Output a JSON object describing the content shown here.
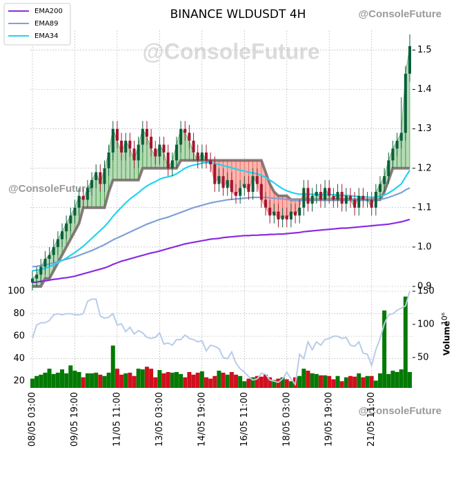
{
  "chart_data": {
    "type": "candlestick",
    "title": "BINANCE WLDUSDT 4H",
    "watermarks": [
      "@ConsoleFuture",
      "@ConsoleFuture",
      "@ConsoleFuture",
      "@ConsoleFuture"
    ],
    "categories": [
      "08/05 03:00",
      null,
      null,
      null,
      null,
      null,
      null,
      null,
      null,
      null,
      "09/05 19:00",
      null,
      null,
      null,
      null,
      null,
      null,
      null,
      null,
      null,
      "11/05 11:00",
      null,
      null,
      null,
      null,
      null,
      null,
      null,
      null,
      null,
      "13/05 03:00",
      null,
      null,
      null,
      null,
      null,
      null,
      null,
      null,
      null,
      "14/05 19:00",
      null,
      null,
      null,
      null,
      null,
      null,
      null,
      null,
      null,
      "16/05 11:00",
      null,
      null,
      null,
      null,
      null,
      null,
      null,
      null,
      null,
      "18/05 03:00",
      null,
      null,
      null,
      null,
      null,
      null,
      null,
      null,
      null,
      "19/05 19:00",
      null,
      null,
      null,
      null,
      null,
      null,
      null,
      null,
      null,
      "21/05 11:00",
      null,
      null,
      null,
      null,
      null,
      null,
      null,
      null,
      null
    ],
    "open": [
      0.91,
      0.92,
      0.93,
      0.95,
      0.97,
      0.98,
      1.0,
      1.02,
      1.04,
      1.06,
      1.08,
      1.1,
      1.13,
      1.12,
      1.15,
      1.17,
      1.19,
      1.16,
      1.2,
      1.24,
      1.3,
      1.27,
      1.24,
      1.27,
      1.25,
      1.22,
      1.26,
      1.3,
      1.28,
      1.25,
      1.23,
      1.26,
      1.24,
      1.2,
      1.22,
      1.26,
      1.3,
      1.29,
      1.27,
      1.24,
      1.22,
      1.24,
      1.22,
      1.21,
      1.16,
      1.18,
      1.15,
      1.17,
      1.14,
      1.13,
      1.15,
      1.16,
      1.14,
      1.18,
      1.16,
      1.12,
      1.1,
      1.08,
      1.09,
      1.07,
      1.08,
      1.07,
      1.09,
      1.08,
      1.1,
      1.15,
      1.11,
      1.13,
      1.14,
      1.12,
      1.15,
      1.13,
      1.12,
      1.14,
      1.11,
      1.13,
      1.12,
      1.1,
      1.13,
      1.12,
      1.12,
      1.1,
      1.14,
      1.16,
      1.18,
      1.22,
      1.25,
      1.27,
      1.29,
      1.44
    ],
    "high": [
      0.94,
      0.95,
      0.97,
      0.99,
      1.0,
      1.02,
      1.04,
      1.06,
      1.08,
      1.1,
      1.12,
      1.15,
      1.15,
      1.17,
      1.19,
      1.21,
      1.21,
      1.22,
      1.26,
      1.32,
      1.32,
      1.29,
      1.29,
      1.29,
      1.27,
      1.28,
      1.32,
      1.32,
      1.3,
      1.27,
      1.28,
      1.28,
      1.26,
      1.24,
      1.28,
      1.32,
      1.32,
      1.31,
      1.29,
      1.26,
      1.26,
      1.26,
      1.24,
      1.23,
      1.2,
      1.2,
      1.19,
      1.19,
      1.16,
      1.17,
      1.18,
      1.18,
      1.2,
      1.2,
      1.18,
      1.14,
      1.12,
      1.11,
      1.11,
      1.1,
      1.1,
      1.11,
      1.11,
      1.12,
      1.17,
      1.17,
      1.15,
      1.16,
      1.16,
      1.17,
      1.17,
      1.15,
      1.16,
      1.16,
      1.15,
      1.15,
      1.14,
      1.15,
      1.15,
      1.14,
      1.14,
      1.16,
      1.18,
      1.2,
      1.24,
      1.27,
      1.29,
      1.38,
      1.46,
      1.54
    ],
    "low": [
      0.89,
      0.9,
      0.91,
      0.93,
      0.95,
      0.96,
      0.98,
      1.0,
      1.02,
      1.04,
      1.06,
      1.08,
      1.1,
      1.1,
      1.13,
      1.15,
      1.14,
      1.14,
      1.18,
      1.22,
      1.25,
      1.22,
      1.22,
      1.23,
      1.2,
      1.2,
      1.24,
      1.26,
      1.23,
      1.21,
      1.21,
      1.22,
      1.18,
      1.18,
      1.2,
      1.24,
      1.27,
      1.25,
      1.22,
      1.2,
      1.2,
      1.2,
      1.19,
      1.14,
      1.14,
      1.13,
      1.13,
      1.12,
      1.11,
      1.11,
      1.13,
      1.12,
      1.12,
      1.14,
      1.1,
      1.08,
      1.06,
      1.06,
      1.05,
      1.05,
      1.05,
      1.05,
      1.06,
      1.06,
      1.08,
      1.09,
      1.09,
      1.11,
      1.1,
      1.1,
      1.11,
      1.1,
      1.1,
      1.09,
      1.09,
      1.1,
      1.08,
      1.08,
      1.1,
      1.1,
      1.08,
      1.08,
      1.12,
      1.14,
      1.16,
      1.2,
      1.23,
      1.25,
      1.27,
      1.42
    ],
    "close": [
      0.92,
      0.93,
      0.95,
      0.97,
      0.98,
      1.0,
      1.02,
      1.04,
      1.06,
      1.08,
      1.1,
      1.13,
      1.12,
      1.15,
      1.17,
      1.19,
      1.16,
      1.2,
      1.24,
      1.3,
      1.27,
      1.24,
      1.27,
      1.25,
      1.22,
      1.26,
      1.3,
      1.28,
      1.25,
      1.23,
      1.26,
      1.24,
      1.2,
      1.22,
      1.26,
      1.3,
      1.29,
      1.27,
      1.24,
      1.22,
      1.24,
      1.22,
      1.21,
      1.16,
      1.18,
      1.15,
      1.17,
      1.14,
      1.13,
      1.15,
      1.16,
      1.14,
      1.18,
      1.16,
      1.12,
      1.1,
      1.08,
      1.09,
      1.07,
      1.08,
      1.07,
      1.09,
      1.08,
      1.1,
      1.15,
      1.11,
      1.13,
      1.14,
      1.12,
      1.15,
      1.13,
      1.12,
      1.14,
      1.11,
      1.13,
      1.12,
      1.1,
      1.13,
      1.12,
      1.12,
      1.1,
      1.14,
      1.16,
      1.18,
      1.22,
      1.25,
      1.27,
      1.29,
      1.44,
      1.51
    ],
    "up_color": "#0b5e3e",
    "down_color": "#a3162f",
    "trend": [
      0.9,
      0.9,
      0.9,
      0.92,
      0.92,
      0.94,
      0.96,
      0.98,
      1.0,
      1.02,
      1.04,
      1.06,
      1.1,
      1.1,
      1.1,
      1.1,
      1.1,
      1.1,
      1.14,
      1.17,
      1.17,
      1.17,
      1.17,
      1.17,
      1.17,
      1.17,
      1.2,
      1.2,
      1.2,
      1.2,
      1.2,
      1.2,
      1.2,
      1.2,
      1.2,
      1.22,
      1.22,
      1.22,
      1.22,
      1.22,
      1.22,
      1.22,
      1.22,
      1.22,
      1.22,
      1.22,
      1.22,
      1.22,
      1.22,
      1.22,
      1.22,
      1.22,
      1.22,
      1.22,
      1.22,
      1.19,
      1.16,
      1.14,
      1.13,
      1.13,
      1.13,
      1.12,
      1.12,
      1.12,
      1.12,
      1.12,
      1.12,
      1.12,
      1.12,
      1.12,
      1.12,
      1.12,
      1.12,
      1.12,
      1.12,
      1.12,
      1.12,
      1.12,
      1.12,
      1.12,
      1.12,
      1.12,
      1.12,
      1.14,
      1.17,
      1.2,
      1.2,
      1.2,
      1.2,
      1.2
    ],
    "series": [
      {
        "name": "EMA200",
        "color": "#8a2be2",
        "values": [
          0.91,
          0.911,
          0.913,
          0.914,
          0.916,
          0.918,
          0.919,
          0.921,
          0.922,
          0.924,
          0.926,
          0.929,
          0.932,
          0.935,
          0.938,
          0.941,
          0.944,
          0.947,
          0.951,
          0.956,
          0.96,
          0.964,
          0.967,
          0.97,
          0.973,
          0.976,
          0.979,
          0.982,
          0.985,
          0.987,
          0.99,
          0.993,
          0.996,
          0.999,
          1.002,
          1.005,
          1.008,
          1.01,
          1.012,
          1.014,
          1.016,
          1.018,
          1.02,
          1.021,
          1.022,
          1.024,
          1.025,
          1.026,
          1.027,
          1.028,
          1.029,
          1.029,
          1.03,
          1.03,
          1.031,
          1.031,
          1.032,
          1.032,
          1.033,
          1.033,
          1.034,
          1.035,
          1.036,
          1.037,
          1.039,
          1.04,
          1.041,
          1.042,
          1.043,
          1.044,
          1.045,
          1.046,
          1.047,
          1.048,
          1.048,
          1.049,
          1.05,
          1.051,
          1.052,
          1.053,
          1.054,
          1.055,
          1.056,
          1.057,
          1.058,
          1.06,
          1.062,
          1.064,
          1.067,
          1.07
        ]
      },
      {
        "name": "EMA89",
        "color": "#7ea0d6",
        "values": [
          0.95,
          0.951,
          0.953,
          0.955,
          0.957,
          0.96,
          0.963,
          0.966,
          0.969,
          0.972,
          0.975,
          0.979,
          0.983,
          0.987,
          0.991,
          0.996,
          1.001,
          1.006,
          1.012,
          1.018,
          1.023,
          1.028,
          1.033,
          1.038,
          1.043,
          1.048,
          1.053,
          1.058,
          1.062,
          1.066,
          1.07,
          1.073,
          1.076,
          1.08,
          1.084,
          1.088,
          1.092,
          1.096,
          1.1,
          1.103,
          1.106,
          1.109,
          1.112,
          1.114,
          1.116,
          1.118,
          1.12,
          1.121,
          1.122,
          1.123,
          1.124,
          1.125,
          1.126,
          1.126,
          1.126,
          1.126,
          1.125,
          1.124,
          1.123,
          1.122,
          1.121,
          1.12,
          1.119,
          1.119,
          1.12,
          1.12,
          1.12,
          1.12,
          1.12,
          1.12,
          1.12,
          1.12,
          1.12,
          1.12,
          1.12,
          1.12,
          1.119,
          1.119,
          1.119,
          1.119,
          1.119,
          1.12,
          1.121,
          1.123,
          1.126,
          1.13,
          1.134,
          1.138,
          1.145,
          1.15
        ]
      },
      {
        "name": "EMA34",
        "color": "#22d3ef",
        "values": [
          0.94,
          0.941,
          0.943,
          0.946,
          0.95,
          0.955,
          0.96,
          0.966,
          0.972,
          0.979,
          0.986,
          0.994,
          1.002,
          1.012,
          1.022,
          1.032,
          1.042,
          1.052,
          1.064,
          1.078,
          1.09,
          1.101,
          1.112,
          1.122,
          1.13,
          1.138,
          1.147,
          1.155,
          1.161,
          1.166,
          1.172,
          1.176,
          1.178,
          1.181,
          1.186,
          1.193,
          1.2,
          1.205,
          1.208,
          1.21,
          1.213,
          1.214,
          1.214,
          1.212,
          1.21,
          1.207,
          1.204,
          1.201,
          1.198,
          1.195,
          1.193,
          1.19,
          1.188,
          1.186,
          1.182,
          1.177,
          1.17,
          1.163,
          1.155,
          1.148,
          1.143,
          1.139,
          1.136,
          1.134,
          1.135,
          1.134,
          1.134,
          1.134,
          1.133,
          1.133,
          1.133,
          1.133,
          1.132,
          1.131,
          1.131,
          1.13,
          1.129,
          1.128,
          1.127,
          1.127,
          1.126,
          1.127,
          1.129,
          1.132,
          1.137,
          1.144,
          1.152,
          1.16,
          1.178,
          1.195
        ]
      }
    ],
    "ylim": [
      0.9,
      1.55
    ],
    "yticks": [
      0.9,
      {
        "value": 1,
        "label": "1.0"
      },
      1.1,
      1.2,
      1.3,
      1.4,
      1.5
    ],
    "grid": true,
    "lower": {
      "ylim": [
        14,
        100
      ],
      "yticks": [
        20,
        40,
        60,
        80,
        100
      ],
      "line_color": "#b8cce8",
      "line": [
        58,
        70,
        72,
        72,
        74,
        79,
        80,
        79,
        80,
        80,
        79,
        79,
        80,
        91,
        93,
        93,
        78,
        76,
        77,
        80,
        70,
        71,
        64,
        68,
        62,
        65,
        63,
        59,
        58,
        59,
        63,
        53,
        54,
        52,
        57,
        57,
        61,
        58,
        57,
        55,
        56,
        47,
        52,
        51,
        49,
        41,
        40,
        46,
        36,
        31,
        28,
        24,
        21,
        22,
        27,
        26,
        21,
        20,
        19,
        22,
        28,
        22,
        17,
        44,
        40,
        55,
        48,
        55,
        52,
        57,
        58,
        60,
        60,
        58,
        59,
        52,
        51,
        55,
        45,
        44,
        34,
        48,
        58,
        71,
        79,
        80,
        83,
        85,
        87,
        100
      ],
      "y2label": "Volume",
      "y2unit": "10⁶",
      "y2lim": [
        4,
        150
      ],
      "y2ticks": [
        50,
        100,
        150
      ],
      "up_color": "#037a03",
      "down_color": "#d0101e",
      "volume": [
        18,
        22,
        24,
        27,
        33,
        25,
        27,
        32,
        26,
        38,
        30,
        28,
        20,
        26,
        26,
        27,
        24,
        22,
        27,
        68,
        33,
        24,
        26,
        27,
        22,
        33,
        32,
        36,
        33,
        20,
        31,
        26,
        28,
        27,
        28,
        25,
        20,
        28,
        24,
        27,
        29,
        20,
        18,
        22,
        30,
        27,
        24,
        28,
        24,
        22,
        14,
        18,
        20,
        22,
        21,
        24,
        20,
        16,
        18,
        20,
        17,
        14,
        20,
        22,
        33,
        30,
        26,
        25,
        23,
        23,
        22,
        17,
        22,
        14,
        20,
        22,
        21,
        26,
        20,
        22,
        22,
        15,
        26,
        121,
        25,
        30,
        28,
        32,
        142,
        28
      ]
    }
  }
}
